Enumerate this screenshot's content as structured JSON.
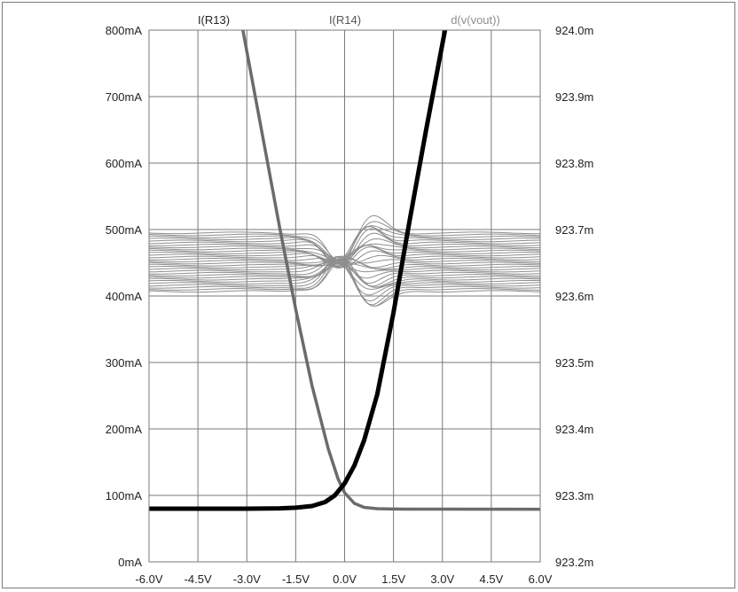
{
  "chart_data": {
    "type": "line",
    "legend_placement": "top",
    "grid": true,
    "x": {
      "range": [
        -6.0,
        6.0
      ],
      "unit": "V",
      "ticks": [
        -6.0,
        -4.5,
        -3.0,
        -1.5,
        0.0,
        1.5,
        3.0,
        4.5,
        6.0
      ],
      "tick_labels": [
        "-6.0V",
        "-4.5V",
        "-3.0V",
        "-1.5V",
        "0.0V",
        "1.5V",
        "3.0V",
        "4.5V",
        "6.0V"
      ]
    },
    "y_left": {
      "range": [
        0,
        800
      ],
      "unit": "mA",
      "ticks": [
        0,
        100,
        200,
        300,
        400,
        500,
        600,
        700,
        800
      ],
      "tick_labels": [
        "0mA",
        "100mA",
        "200mA",
        "300mA",
        "400mA",
        "500mA",
        "600mA",
        "700mA",
        "800mA"
      ]
    },
    "y_right": {
      "range": [
        923.2,
        924.0
      ],
      "unit": "m",
      "ticks": [
        923.2,
        923.3,
        923.4,
        923.5,
        923.6,
        923.7,
        923.8,
        923.9,
        924.0
      ],
      "tick_labels": [
        "923.2m",
        "923.3m",
        "923.4m",
        "923.5m",
        "923.6m",
        "923.7m",
        "923.8m",
        "923.9m",
        "924.0m"
      ]
    },
    "series": [
      {
        "name": "I(R13)",
        "axis": "left",
        "color": "#6b6b6b",
        "stroke": 3.5,
        "x": [
          -3.12,
          -2.5,
          -2.0,
          -1.5,
          -1.0,
          -0.5,
          -0.2,
          0.0,
          0.3,
          0.6,
          1.0,
          1.5,
          2.0,
          3.0,
          6.0
        ],
        "y": [
          800,
          637,
          505,
          380,
          265,
          170,
          125,
          104,
          88,
          82,
          80,
          79.5,
          79.4,
          79.3,
          79.2
        ]
      },
      {
        "name": "I(R14)",
        "axis": "left",
        "color": "#000000",
        "stroke": 5,
        "x": [
          -6.0,
          -3.0,
          -2.0,
          -1.5,
          -1.0,
          -0.6,
          -0.3,
          0.0,
          0.3,
          0.6,
          1.0,
          1.5,
          2.0,
          2.5,
          3.08
        ],
        "y": [
          80,
          80,
          80.5,
          81.5,
          84,
          90,
          100,
          118,
          145,
          183,
          252,
          375,
          515,
          650,
          800
        ]
      }
    ],
    "family": {
      "name": "d(v(vout))",
      "axis": "right",
      "color": "#8e8e8e",
      "stroke": 1,
      "count": 30,
      "x_range": [
        -6.0,
        6.0
      ],
      "baseline_min": 923.607,
      "baseline_max": 923.695,
      "spread_at_max": 923.751,
      "spread_at_min": 923.578
    }
  }
}
